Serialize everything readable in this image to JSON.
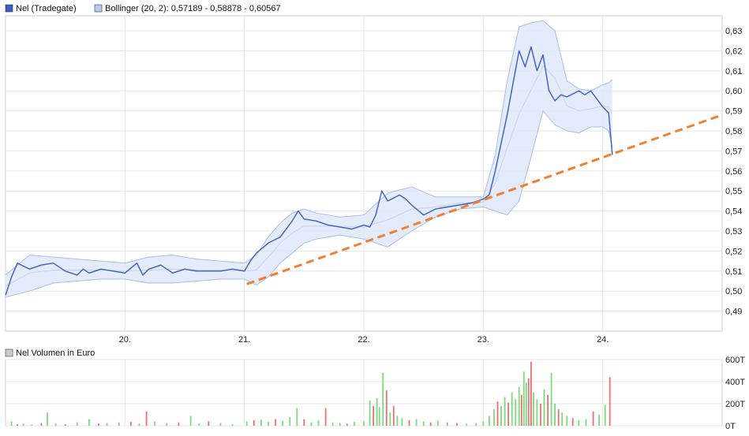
{
  "chart_data": [
    {
      "type": "line",
      "legend": [
        {
          "label": "Nel (Tradegate)",
          "color": "#3a5fbf"
        },
        {
          "label": "Bollinger (20, 2): 0,57189 - 0,58878 - 0,60567",
          "color": "#b8c8ee"
        }
      ],
      "x_tick_labels": [
        "20.",
        "21.",
        "22.",
        "23.",
        "24."
      ],
      "x_ticks": [
        20,
        21,
        22,
        23,
        24
      ],
      "xlim": [
        19.0,
        25.0
      ],
      "y_tick_labels": [
        "0,63",
        "0,62",
        "0,61",
        "0,60",
        "0,59",
        "0,58",
        "0,57",
        "0,56",
        "0,55",
        "0,54",
        "0,53",
        "0,52",
        "0,51",
        "0,50",
        "0,49"
      ],
      "y_ticks": [
        0.63,
        0.62,
        0.61,
        0.6,
        0.59,
        0.58,
        0.57,
        0.56,
        0.55,
        0.54,
        0.53,
        0.52,
        0.51,
        0.5,
        0.49
      ],
      "ylim": [
        0.48,
        0.6375
      ],
      "grid": true,
      "legend_placement": "top-left",
      "series": [
        {
          "name": "Nel (Tradegate)",
          "color": "#3a5fbf",
          "x": [
            19.0,
            19.05,
            19.1,
            19.2,
            19.3,
            19.4,
            19.5,
            19.6,
            19.65,
            19.7,
            19.8,
            19.9,
            20.0,
            20.1,
            20.15,
            20.2,
            20.3,
            20.4,
            20.5,
            20.6,
            20.7,
            20.8,
            20.9,
            21.0,
            21.05,
            21.1,
            21.2,
            21.3,
            21.4,
            21.45,
            21.5,
            21.6,
            21.7,
            21.8,
            21.9,
            22.0,
            22.05,
            22.1,
            22.15,
            22.2,
            22.3,
            22.35,
            22.4,
            22.5,
            22.6,
            22.7,
            22.8,
            22.9,
            23.0,
            23.05,
            23.1,
            23.2,
            23.3,
            23.35,
            23.4,
            23.45,
            23.5,
            23.55,
            23.6,
            23.65,
            23.7,
            23.8,
            23.85,
            23.9,
            24.0,
            24.05,
            24.08
          ],
          "values": [
            0.498,
            0.507,
            0.514,
            0.511,
            0.513,
            0.514,
            0.51,
            0.508,
            0.511,
            0.509,
            0.511,
            0.51,
            0.509,
            0.514,
            0.508,
            0.511,
            0.513,
            0.509,
            0.511,
            0.51,
            0.51,
            0.51,
            0.511,
            0.51,
            0.515,
            0.519,
            0.524,
            0.527,
            0.535,
            0.54,
            0.536,
            0.535,
            0.533,
            0.532,
            0.531,
            0.533,
            0.532,
            0.538,
            0.55,
            0.545,
            0.548,
            0.546,
            0.543,
            0.538,
            0.541,
            0.542,
            0.543,
            0.544,
            0.546,
            0.548,
            0.56,
            0.588,
            0.62,
            0.612,
            0.622,
            0.61,
            0.618,
            0.6,
            0.595,
            0.598,
            0.597,
            0.6,
            0.598,
            0.6,
            0.592,
            0.589,
            0.568
          ]
        }
      ],
      "bollinger": {
        "x": [
          19.0,
          19.2,
          19.4,
          19.6,
          19.8,
          20.0,
          20.2,
          20.4,
          20.6,
          20.8,
          21.0,
          21.1,
          21.2,
          21.3,
          21.4,
          21.5,
          21.6,
          21.8,
          22.0,
          22.2,
          22.4,
          22.6,
          22.8,
          23.0,
          23.1,
          23.2,
          23.3,
          23.4,
          23.5,
          23.6,
          23.7,
          23.8,
          23.9,
          24.0,
          24.05,
          24.08
        ],
        "upper": [
          0.508,
          0.518,
          0.517,
          0.516,
          0.515,
          0.514,
          0.517,
          0.518,
          0.516,
          0.515,
          0.514,
          0.518,
          0.527,
          0.534,
          0.539,
          0.541,
          0.539,
          0.537,
          0.538,
          0.549,
          0.552,
          0.547,
          0.547,
          0.547,
          0.568,
          0.605,
          0.632,
          0.634,
          0.635,
          0.63,
          0.605,
          0.601,
          0.6,
          0.603,
          0.604,
          0.6057
        ],
        "lower": [
          0.497,
          0.5,
          0.504,
          0.505,
          0.506,
          0.506,
          0.504,
          0.504,
          0.505,
          0.506,
          0.506,
          0.503,
          0.507,
          0.514,
          0.519,
          0.524,
          0.526,
          0.528,
          0.526,
          0.522,
          0.53,
          0.537,
          0.541,
          0.542,
          0.54,
          0.538,
          0.545,
          0.567,
          0.59,
          0.583,
          0.58,
          0.579,
          0.582,
          0.582,
          0.58,
          0.5719
        ]
      },
      "annotations": [
        {
          "type": "trendline",
          "color": "#f08030",
          "style": "dashed",
          "x": [
            21.02,
            25.0
          ],
          "y": [
            0.5035,
            0.588
          ]
        }
      ]
    },
    {
      "type": "bar",
      "title": "Nel Volumen in Euro",
      "legend_color": "#cccccc",
      "y_tick_labels": [
        "600T",
        "400T",
        "200T",
        "0T"
      ],
      "y_ticks": [
        600,
        400,
        200,
        0
      ],
      "ylim": [
        0,
        600
      ],
      "xlim": [
        19.0,
        25.0
      ],
      "grid": true,
      "up_color": "#7ed87e",
      "down_color": "#ec7070",
      "bars": [
        {
          "x": 19.05,
          "v": 40,
          "c": "up"
        },
        {
          "x": 19.1,
          "v": 15,
          "c": "down"
        },
        {
          "x": 19.15,
          "v": 20,
          "c": "up"
        },
        {
          "x": 19.22,
          "v": 10,
          "c": "up"
        },
        {
          "x": 19.3,
          "v": 25,
          "c": "down"
        },
        {
          "x": 19.35,
          "v": 120,
          "c": "up"
        },
        {
          "x": 19.42,
          "v": 20,
          "c": "up"
        },
        {
          "x": 19.5,
          "v": 15,
          "c": "down"
        },
        {
          "x": 19.6,
          "v": 30,
          "c": "up"
        },
        {
          "x": 19.7,
          "v": 60,
          "c": "up"
        },
        {
          "x": 19.78,
          "v": 20,
          "c": "down"
        },
        {
          "x": 19.85,
          "v": 25,
          "c": "up"
        },
        {
          "x": 19.95,
          "v": 30,
          "c": "up"
        },
        {
          "x": 20.05,
          "v": 35,
          "c": "down"
        },
        {
          "x": 20.12,
          "v": 20,
          "c": "up"
        },
        {
          "x": 20.18,
          "v": 130,
          "c": "down"
        },
        {
          "x": 20.25,
          "v": 40,
          "c": "up"
        },
        {
          "x": 20.35,
          "v": 25,
          "c": "up"
        },
        {
          "x": 20.45,
          "v": 30,
          "c": "down"
        },
        {
          "x": 20.55,
          "v": 90,
          "c": "up"
        },
        {
          "x": 20.62,
          "v": 20,
          "c": "up"
        },
        {
          "x": 20.7,
          "v": 40,
          "c": "down"
        },
        {
          "x": 20.8,
          "v": 25,
          "c": "up"
        },
        {
          "x": 20.9,
          "v": 15,
          "c": "up"
        },
        {
          "x": 21.02,
          "v": 40,
          "c": "up"
        },
        {
          "x": 21.08,
          "v": 50,
          "c": "down"
        },
        {
          "x": 21.14,
          "v": 55,
          "c": "up"
        },
        {
          "x": 21.2,
          "v": 35,
          "c": "up"
        },
        {
          "x": 21.26,
          "v": 60,
          "c": "down"
        },
        {
          "x": 21.32,
          "v": 45,
          "c": "up"
        },
        {
          "x": 21.38,
          "v": 80,
          "c": "up"
        },
        {
          "x": 21.44,
          "v": 160,
          "c": "up"
        },
        {
          "x": 21.5,
          "v": 60,
          "c": "down"
        },
        {
          "x": 21.56,
          "v": 30,
          "c": "up"
        },
        {
          "x": 21.62,
          "v": 50,
          "c": "up"
        },
        {
          "x": 21.68,
          "v": 160,
          "c": "down"
        },
        {
          "x": 21.74,
          "v": 30,
          "c": "up"
        },
        {
          "x": 21.8,
          "v": 25,
          "c": "up"
        },
        {
          "x": 21.86,
          "v": 20,
          "c": "down"
        },
        {
          "x": 21.92,
          "v": 35,
          "c": "up"
        },
        {
          "x": 22.0,
          "v": 40,
          "c": "up"
        },
        {
          "x": 22.05,
          "v": 230,
          "c": "up"
        },
        {
          "x": 22.08,
          "v": 180,
          "c": "down"
        },
        {
          "x": 22.11,
          "v": 250,
          "c": "up"
        },
        {
          "x": 22.13,
          "v": 170,
          "c": "up"
        },
        {
          "x": 22.16,
          "v": 480,
          "c": "up"
        },
        {
          "x": 22.19,
          "v": 320,
          "c": "down"
        },
        {
          "x": 22.22,
          "v": 120,
          "c": "up"
        },
        {
          "x": 22.25,
          "v": 180,
          "c": "down"
        },
        {
          "x": 22.28,
          "v": 90,
          "c": "up"
        },
        {
          "x": 22.32,
          "v": 70,
          "c": "up"
        },
        {
          "x": 22.38,
          "v": 50,
          "c": "down"
        },
        {
          "x": 22.44,
          "v": 60,
          "c": "up"
        },
        {
          "x": 22.5,
          "v": 40,
          "c": "up"
        },
        {
          "x": 22.56,
          "v": 30,
          "c": "down"
        },
        {
          "x": 22.62,
          "v": 45,
          "c": "up"
        },
        {
          "x": 22.7,
          "v": 30,
          "c": "up"
        },
        {
          "x": 22.78,
          "v": 25,
          "c": "down"
        },
        {
          "x": 22.86,
          "v": 20,
          "c": "up"
        },
        {
          "x": 22.94,
          "v": 25,
          "c": "up"
        },
        {
          "x": 23.0,
          "v": 40,
          "c": "up"
        },
        {
          "x": 23.05,
          "v": 90,
          "c": "up"
        },
        {
          "x": 23.09,
          "v": 150,
          "c": "up"
        },
        {
          "x": 23.12,
          "v": 220,
          "c": "down"
        },
        {
          "x": 23.15,
          "v": 180,
          "c": "up"
        },
        {
          "x": 23.18,
          "v": 260,
          "c": "up"
        },
        {
          "x": 23.21,
          "v": 210,
          "c": "down"
        },
        {
          "x": 23.24,
          "v": 300,
          "c": "up"
        },
        {
          "x": 23.27,
          "v": 240,
          "c": "up"
        },
        {
          "x": 23.3,
          "v": 350,
          "c": "up"
        },
        {
          "x": 23.32,
          "v": 280,
          "c": "down"
        },
        {
          "x": 23.34,
          "v": 490,
          "c": "up"
        },
        {
          "x": 23.36,
          "v": 390,
          "c": "up"
        },
        {
          "x": 23.38,
          "v": 430,
          "c": "down"
        },
        {
          "x": 23.4,
          "v": 580,
          "c": "down"
        },
        {
          "x": 23.42,
          "v": 300,
          "c": "up"
        },
        {
          "x": 23.45,
          "v": 240,
          "c": "up"
        },
        {
          "x": 23.48,
          "v": 200,
          "c": "down"
        },
        {
          "x": 23.51,
          "v": 330,
          "c": "up"
        },
        {
          "x": 23.54,
          "v": 280,
          "c": "down"
        },
        {
          "x": 23.57,
          "v": 480,
          "c": "up"
        },
        {
          "x": 23.6,
          "v": 200,
          "c": "up"
        },
        {
          "x": 23.63,
          "v": 150,
          "c": "down"
        },
        {
          "x": 23.66,
          "v": 120,
          "c": "up"
        },
        {
          "x": 23.7,
          "v": 90,
          "c": "up"
        },
        {
          "x": 23.75,
          "v": 70,
          "c": "down"
        },
        {
          "x": 23.8,
          "v": 50,
          "c": "up"
        },
        {
          "x": 23.86,
          "v": 60,
          "c": "up"
        },
        {
          "x": 23.92,
          "v": 130,
          "c": "down"
        },
        {
          "x": 23.97,
          "v": 100,
          "c": "up"
        },
        {
          "x": 24.02,
          "v": 190,
          "c": "up"
        },
        {
          "x": 24.06,
          "v": 440,
          "c": "down"
        }
      ]
    }
  ]
}
